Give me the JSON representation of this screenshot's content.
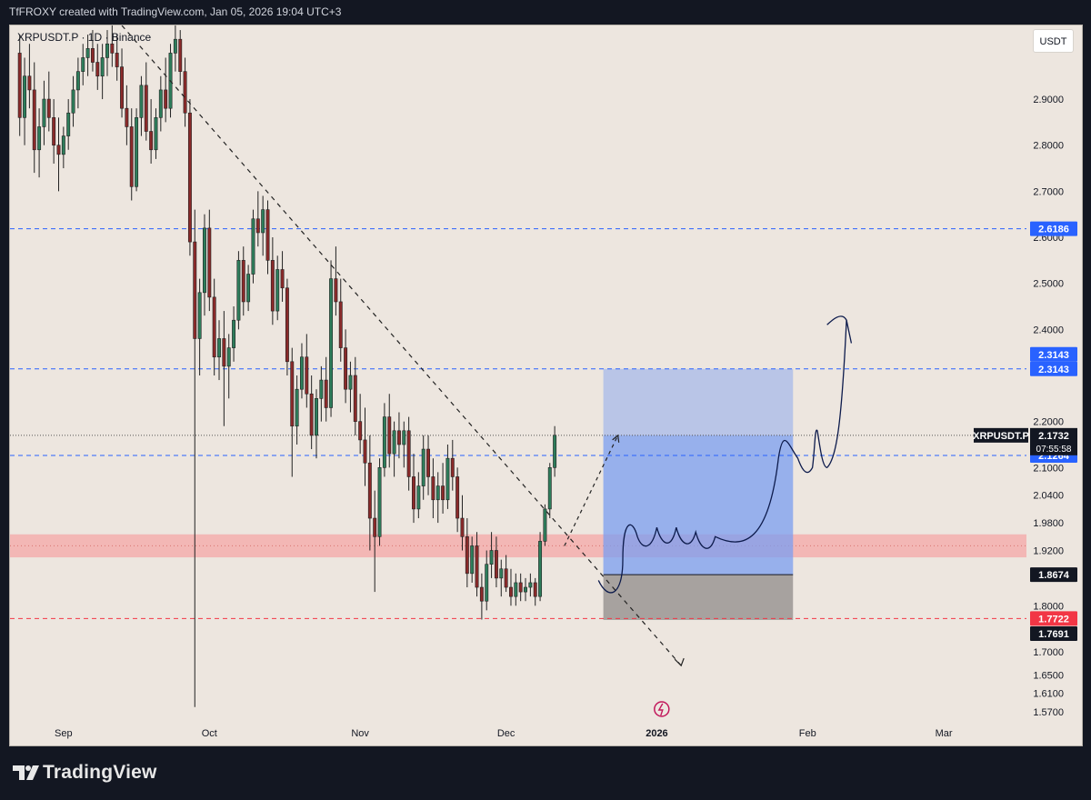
{
  "header": {
    "caption": "TfFROXY created with TradingView.com, Jan 05, 2026 19:04 UTC+3"
  },
  "symbol_legend": "XRPUSDT.P · 1D · Binance",
  "currency_button": "USDT",
  "brand": "TradingView",
  "colors": {
    "background": "#ede6df",
    "bull": "#2e7d5b",
    "bear": "#8a2a2a",
    "level_blue": "#2962ff",
    "level_red": "#f23645",
    "supply_zone": "#f4a7a7",
    "target_box": "#7b9ef1",
    "stop_box": "#8f8b89",
    "drawing_blue": "#0d1b4c"
  },
  "chart_data": {
    "type": "candlestick",
    "symbol": "XRPUSDT.P",
    "interval": "1D",
    "exchange": "Binance",
    "ylim": [
      1.54,
      3.06
    ],
    "y_ticks": [
      "2.9000",
      "2.8000",
      "2.7000",
      "2.6000",
      "2.5000",
      "2.4000",
      "2.2000",
      "2.1000",
      "2.0400",
      "1.9800",
      "1.9200",
      "1.8000",
      "1.7000",
      "1.6500",
      "1.6100",
      "1.5700"
    ],
    "x_ticks": [
      {
        "label": "Sep",
        "day": 0
      },
      {
        "label": "Oct",
        "day": 30
      },
      {
        "label": "Nov",
        "day": 61
      },
      {
        "label": "Dec",
        "day": 91
      },
      {
        "label": "2026",
        "day": 122
      },
      {
        "label": "Feb",
        "day": 153
      },
      {
        "label": "Mar",
        "day": 181
      }
    ],
    "x_range_days": [
      -11,
      198
    ],
    "candles": [
      [
        3.0,
        3.04,
        2.82,
        2.86
      ],
      [
        2.86,
        2.99,
        2.8,
        2.95
      ],
      [
        2.95,
        3.02,
        2.88,
        2.92
      ],
      [
        2.92,
        2.98,
        2.74,
        2.79
      ],
      [
        2.79,
        2.88,
        2.73,
        2.84
      ],
      [
        2.84,
        2.94,
        2.8,
        2.9
      ],
      [
        2.9,
        2.96,
        2.83,
        2.86
      ],
      [
        2.86,
        2.9,
        2.76,
        2.8
      ],
      [
        2.8,
        2.86,
        2.7,
        2.78
      ],
      [
        2.78,
        2.84,
        2.75,
        2.82
      ],
      [
        2.82,
        2.9,
        2.79,
        2.87
      ],
      [
        2.87,
        2.95,
        2.84,
        2.92
      ],
      [
        2.92,
        2.99,
        2.88,
        2.96
      ],
      [
        2.96,
        3.02,
        2.93,
        2.99
      ],
      [
        2.99,
        3.04,
        2.95,
        3.01
      ],
      [
        3.01,
        3.05,
        2.96,
        2.98
      ],
      [
        2.98,
        3.02,
        2.92,
        2.95
      ],
      [
        2.95,
        3.02,
        2.9,
        2.99
      ],
      [
        2.99,
        3.05,
        2.95,
        3.02
      ],
      [
        3.02,
        3.06,
        2.97,
        3.0
      ],
      [
        3.0,
        3.04,
        2.94,
        2.97
      ],
      [
        2.97,
        3.01,
        2.86,
        2.88
      ],
      [
        2.88,
        2.93,
        2.8,
        2.84
      ],
      [
        2.84,
        2.88,
        2.68,
        2.71
      ],
      [
        2.71,
        2.88,
        2.7,
        2.86
      ],
      [
        2.86,
        2.95,
        2.82,
        2.93
      ],
      [
        2.93,
        2.98,
        2.81,
        2.83
      ],
      [
        2.83,
        2.9,
        2.76,
        2.79
      ],
      [
        2.79,
        2.88,
        2.77,
        2.86
      ],
      [
        2.86,
        2.95,
        2.83,
        2.92
      ],
      [
        2.92,
        2.99,
        2.85,
        2.88
      ],
      [
        2.88,
        3.02,
        2.86,
        3.0
      ],
      [
        3.0,
        3.06,
        2.96,
        3.03
      ],
      [
        3.03,
        3.05,
        2.93,
        2.96
      ],
      [
        2.96,
        2.99,
        2.84,
        2.87
      ],
      [
        2.87,
        2.9,
        2.56,
        2.59
      ],
      [
        2.59,
        2.66,
        1.58,
        2.38
      ],
      [
        2.38,
        2.51,
        2.3,
        2.48
      ],
      [
        2.48,
        2.65,
        2.43,
        2.62
      ],
      [
        2.62,
        2.66,
        2.44,
        2.47
      ],
      [
        2.47,
        2.51,
        2.3,
        2.34
      ],
      [
        2.34,
        2.42,
        2.29,
        2.38
      ],
      [
        2.38,
        2.44,
        2.19,
        2.32
      ],
      [
        2.32,
        2.39,
        2.25,
        2.36
      ],
      [
        2.36,
        2.45,
        2.33,
        2.42
      ],
      [
        2.42,
        2.57,
        2.4,
        2.55
      ],
      [
        2.55,
        2.58,
        2.43,
        2.46
      ],
      [
        2.46,
        2.54,
        2.44,
        2.52
      ],
      [
        2.52,
        2.66,
        2.5,
        2.64
      ],
      [
        2.64,
        2.7,
        2.58,
        2.61
      ],
      [
        2.61,
        2.69,
        2.56,
        2.66
      ],
      [
        2.66,
        2.68,
        2.52,
        2.55
      ],
      [
        2.55,
        2.6,
        2.41,
        2.44
      ],
      [
        2.44,
        2.56,
        2.42,
        2.53
      ],
      [
        2.53,
        2.57,
        2.46,
        2.49
      ],
      [
        2.49,
        2.51,
        2.3,
        2.33
      ],
      [
        2.33,
        2.36,
        2.08,
        2.19
      ],
      [
        2.19,
        2.3,
        2.15,
        2.27
      ],
      [
        2.27,
        2.37,
        2.25,
        2.34
      ],
      [
        2.34,
        2.39,
        2.23,
        2.26
      ],
      [
        2.26,
        2.3,
        2.14,
        2.17
      ],
      [
        2.17,
        2.27,
        2.12,
        2.25
      ],
      [
        2.25,
        2.32,
        2.2,
        2.29
      ],
      [
        2.29,
        2.34,
        2.2,
        2.23
      ],
      [
        2.23,
        2.55,
        2.21,
        2.51
      ],
      [
        2.51,
        2.58,
        2.43,
        2.46
      ],
      [
        2.46,
        2.51,
        2.33,
        2.36
      ],
      [
        2.36,
        2.4,
        2.24,
        2.27
      ],
      [
        2.27,
        2.33,
        2.22,
        2.3
      ],
      [
        2.3,
        2.34,
        2.17,
        2.2
      ],
      [
        2.2,
        2.26,
        2.13,
        2.16
      ],
      [
        2.16,
        2.23,
        2.06,
        2.11
      ],
      [
        2.11,
        2.17,
        1.92,
        1.99
      ],
      [
        1.99,
        2.05,
        1.83,
        1.95
      ],
      [
        1.95,
        2.12,
        1.93,
        2.1
      ],
      [
        2.1,
        2.24,
        2.08,
        2.21
      ],
      [
        2.21,
        2.26,
        2.1,
        2.13
      ],
      [
        2.13,
        2.2,
        2.08,
        2.18
      ],
      [
        2.18,
        2.22,
        2.12,
        2.15
      ],
      [
        2.15,
        2.2,
        2.1,
        2.18
      ],
      [
        2.18,
        2.21,
        2.05,
        2.08
      ],
      [
        2.08,
        2.13,
        1.98,
        2.01
      ],
      [
        2.01,
        2.09,
        1.99,
        2.06
      ],
      [
        2.06,
        2.17,
        2.03,
        2.14
      ],
      [
        2.14,
        2.17,
        2.04,
        2.08
      ],
      [
        2.08,
        2.12,
        1.99,
        2.03
      ],
      [
        2.03,
        2.09,
        1.98,
        2.06
      ],
      [
        2.06,
        2.11,
        2.0,
        2.03
      ],
      [
        2.03,
        2.15,
        2.01,
        2.12
      ],
      [
        2.12,
        2.16,
        2.05,
        2.08
      ],
      [
        2.08,
        2.1,
        1.96,
        1.99
      ],
      [
        1.99,
        2.04,
        1.92,
        1.95
      ],
      [
        1.95,
        1.99,
        1.84,
        1.87
      ],
      [
        1.87,
        1.95,
        1.85,
        1.93
      ],
      [
        1.93,
        1.96,
        1.82,
        1.84
      ],
      [
        1.84,
        1.87,
        1.77,
        1.81
      ],
      [
        1.81,
        1.92,
        1.79,
        1.89
      ],
      [
        1.89,
        1.96,
        1.86,
        1.92
      ],
      [
        1.92,
        1.95,
        1.84,
        1.86
      ],
      [
        1.86,
        1.9,
        1.82,
        1.88
      ],
      [
        1.88,
        1.91,
        1.83,
        1.84
      ],
      [
        1.84,
        1.88,
        1.8,
        1.82
      ],
      [
        1.82,
        1.87,
        1.8,
        1.85
      ],
      [
        1.85,
        1.87,
        1.81,
        1.83
      ],
      [
        1.83,
        1.86,
        1.81,
        1.84
      ],
      [
        1.84,
        1.87,
        1.82,
        1.85
      ],
      [
        1.85,
        1.86,
        1.8,
        1.82
      ],
      [
        1.82,
        1.96,
        1.81,
        1.94
      ],
      [
        1.94,
        2.02,
        1.93,
        2.01
      ],
      [
        2.01,
        2.11,
        1.99,
        2.1
      ],
      [
        2.1,
        2.19,
        2.08,
        2.17
      ]
    ],
    "series_labels": {
      "last_price": "2.1732",
      "countdown": "07:55:58",
      "symbol_tag": "XRPUSDT.P"
    },
    "levels": [
      {
        "value": 2.6186,
        "label": "2.6186",
        "style": "dashed",
        "color": "#2962ff"
      },
      {
        "value": 2.3143,
        "label": "2.3143",
        "style": "dashed",
        "color": "#2962ff",
        "extra_label": "2.3143"
      },
      {
        "value": 2.1264,
        "label": "2.1264",
        "style": "dashed",
        "color": "#2962ff"
      },
      {
        "value": 1.7722,
        "label": "1.7722",
        "style": "dashed",
        "color": "#f23645"
      },
      {
        "value": 1.8674,
        "label": "1.8674",
        "style": "solid",
        "color": "#131722"
      },
      {
        "value": 1.7691,
        "label": "1.7691",
        "style": "tag",
        "color": "#131722"
      }
    ],
    "zone": {
      "top": 1.955,
      "bottom": 1.905
    },
    "position": {
      "entry": 1.8674,
      "target": 2.3143,
      "stop": 1.7691,
      "x_start_day": 111,
      "x_end_day": 150
    },
    "trendline": {
      "from": {
        "day": 12,
        "price": 3.06
      },
      "to": {
        "day": 127,
        "price": 1.67
      }
    },
    "projection_arrow": {
      "from": {
        "day": 103,
        "price": 1.93
      },
      "to": {
        "day": 114,
        "price": 2.17
      }
    }
  }
}
